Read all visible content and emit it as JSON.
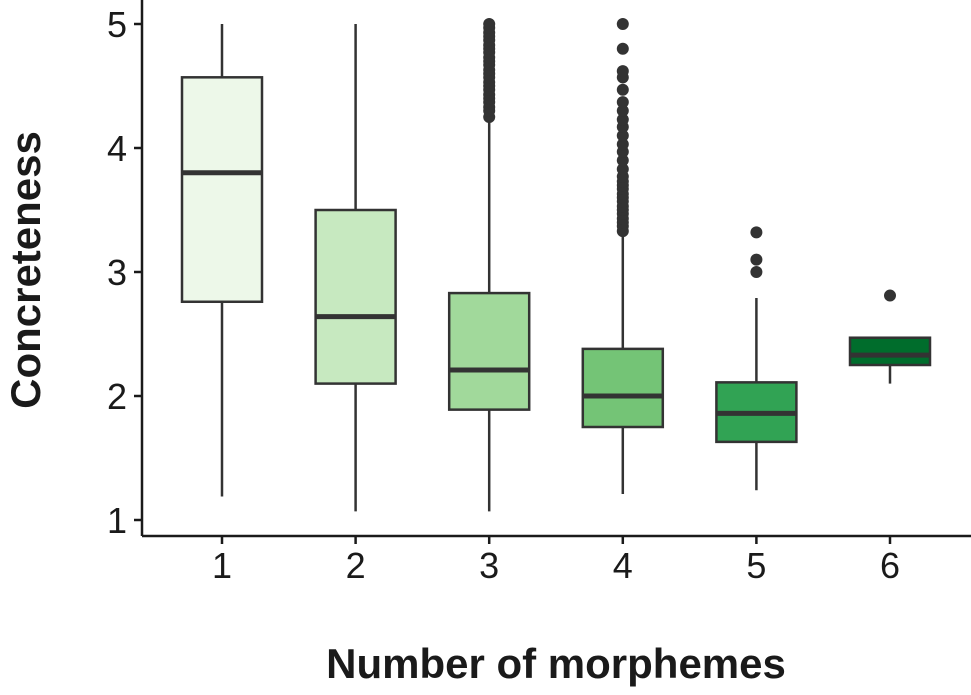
{
  "chart_data": {
    "type": "boxplot",
    "xlabel": "Number of morphemes",
    "ylabel": "Concreteness",
    "categories": [
      "1",
      "2",
      "3",
      "4",
      "5",
      "6"
    ],
    "y_ticks": [
      "1",
      "2",
      "3",
      "4",
      "5"
    ],
    "ylim": [
      0.9,
      5.1
    ],
    "grid": false,
    "legend": "none",
    "colors": {
      "boxes": [
        "#edf8e9",
        "#c7e9c0",
        "#a1d99b",
        "#74c476",
        "#31a354",
        "#006d2c"
      ],
      "outline": "#333333",
      "axis": "#1a1a1a"
    },
    "boxes": [
      {
        "category": "1",
        "whisker_low": 1.19,
        "q1": 2.76,
        "median": 3.8,
        "q3": 4.57,
        "whisker_high": 5.0,
        "outliers": []
      },
      {
        "category": "2",
        "whisker_low": 1.07,
        "q1": 2.1,
        "median": 2.64,
        "q3": 3.5,
        "whisker_high": 5.0,
        "outliers": []
      },
      {
        "category": "3",
        "whisker_low": 1.07,
        "q1": 1.89,
        "median": 2.21,
        "q3": 2.83,
        "whisker_high": 4.23,
        "outliers": [
          4.25,
          4.3,
          4.33,
          4.37,
          4.4,
          4.43,
          4.47,
          4.5,
          4.53,
          4.57,
          4.6,
          4.63,
          4.67,
          4.7,
          4.73,
          4.77,
          4.8,
          4.83,
          4.87,
          4.9,
          4.93,
          4.97,
          5.0
        ]
      },
      {
        "category": "4",
        "whisker_low": 1.21,
        "q1": 1.75,
        "median": 2.0,
        "q3": 2.38,
        "whisker_high": 3.3,
        "outliers": [
          3.33,
          3.37,
          3.4,
          3.43,
          3.47,
          3.5,
          3.53,
          3.57,
          3.6,
          3.63,
          3.67,
          3.7,
          3.73,
          3.77,
          3.83,
          3.9,
          3.97,
          4.03,
          4.1,
          4.17,
          4.23,
          4.3,
          4.37,
          4.47,
          4.57,
          4.62,
          4.8,
          5.0
        ]
      },
      {
        "category": "5",
        "whisker_low": 1.24,
        "q1": 1.63,
        "median": 1.86,
        "q3": 2.11,
        "whisker_high": 2.79,
        "outliers": [
          3.0,
          3.1,
          3.32
        ]
      },
      {
        "category": "6",
        "whisker_low": 2.1,
        "q1": 2.25,
        "median": 2.33,
        "q3": 2.47,
        "whisker_high": 2.47,
        "outliers": [
          2.81
        ]
      }
    ]
  }
}
